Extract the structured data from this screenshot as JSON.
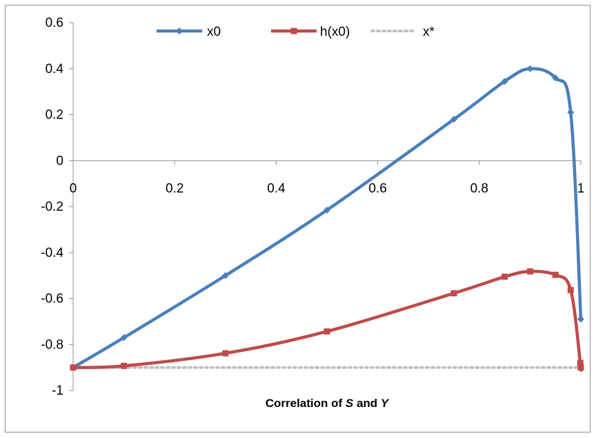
{
  "chart_data": {
    "type": "line",
    "xlabel": "Correlation of S and Y",
    "xlabel_parts": [
      {
        "text": "Correlation of ",
        "italic": false
      },
      {
        "text": "S",
        "italic": true
      },
      {
        "text": " and ",
        "italic": false
      },
      {
        "text": "Y",
        "italic": true
      }
    ],
    "ylabel": "",
    "xlim": [
      0,
      1
    ],
    "ylim": [
      -1,
      0.6
    ],
    "x_ticks": [
      "0",
      "0.2",
      "0.4",
      "0.6",
      "0.8",
      "1"
    ],
    "y_ticks": [
      "0.6",
      "0.4",
      "0.2",
      "0",
      "-0.2",
      "-0.4",
      "-0.6",
      "-0.8",
      "-1"
    ],
    "grid": false,
    "legend_position": "top",
    "series": [
      {
        "name": "x0",
        "color": "#4a7ebb",
        "marker": "diamond",
        "smooth": true,
        "x": [
          0,
          0.1,
          0.3,
          0.5,
          0.75,
          0.85,
          0.9,
          0.95,
          0.98,
          1.0
        ],
        "y": [
          -0.9,
          -0.77,
          -0.5,
          -0.215,
          0.18,
          0.345,
          0.4,
          0.36,
          0.21,
          -0.69
        ]
      },
      {
        "name": "h(x0)",
        "color": "#be4b48",
        "marker": "square",
        "smooth": true,
        "x": [
          0,
          0.1,
          0.3,
          0.5,
          0.75,
          0.85,
          0.9,
          0.95,
          0.98,
          0.999,
          1.0
        ],
        "y": [
          -0.9,
          -0.893,
          -0.838,
          -0.743,
          -0.577,
          -0.505,
          -0.482,
          -0.497,
          -0.563,
          -0.88,
          -0.9
        ]
      },
      {
        "name": "x*",
        "color": "#bfbfbf",
        "marker": "none",
        "dotted": true,
        "x": [
          0,
          1
        ],
        "y": [
          -0.9,
          -0.9
        ]
      }
    ]
  }
}
